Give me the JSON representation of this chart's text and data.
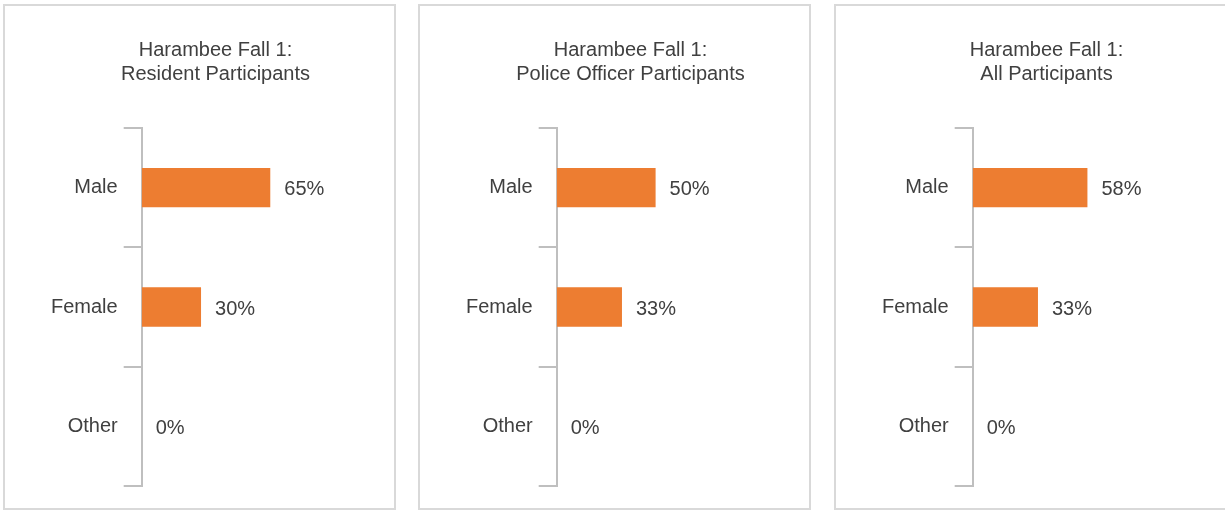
{
  "chart_data": [
    {
      "type": "bar",
      "orientation": "horizontal",
      "title": "Harambee Fall 1:\nResident Participants",
      "categories": [
        "Male",
        "Female",
        "Other"
      ],
      "values": [
        65,
        30,
        0
      ],
      "value_labels": [
        "65%",
        "30%",
        "0%"
      ],
      "color": "#ed7d31",
      "tick_labels": "y",
      "grid": false,
      "legend": false
    },
    {
      "type": "bar",
      "orientation": "horizontal",
      "title": "Harambee Fall 1:\nPolice Officer Participants",
      "categories": [
        "Male",
        "Female",
        "Other"
      ],
      "values": [
        50,
        33,
        0
      ],
      "value_labels": [
        "50%",
        "33%",
        "0%"
      ],
      "color": "#ed7d31",
      "tick_labels": "y",
      "grid": false,
      "legend": false
    },
    {
      "type": "bar",
      "orientation": "horizontal",
      "title": "Harambee Fall 1:\nAll Participants",
      "categories": [
        "Male",
        "Female",
        "Other"
      ],
      "values": [
        58,
        33,
        0
      ],
      "value_labels": [
        "58%",
        "33%",
        "0%"
      ],
      "color": "#ed7d31",
      "tick_labels": "y",
      "grid": false,
      "legend": false
    }
  ]
}
